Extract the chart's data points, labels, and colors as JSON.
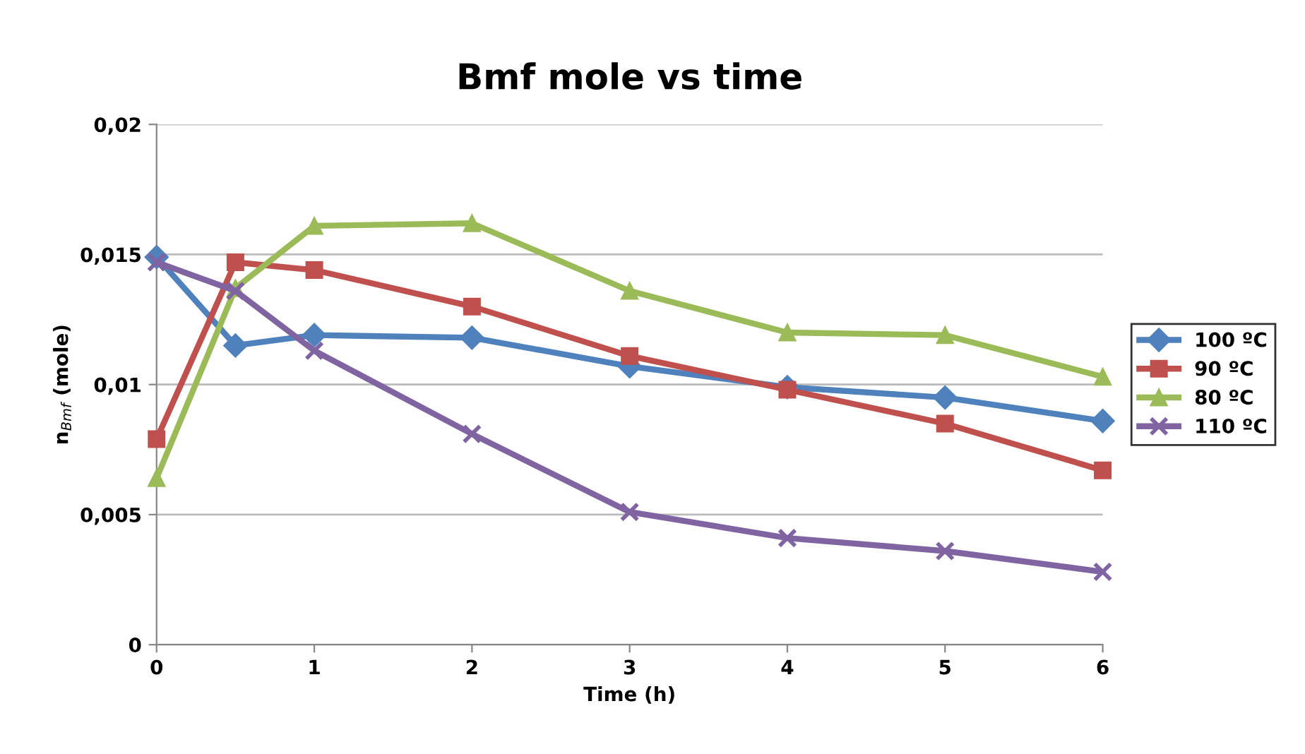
{
  "chart_data": {
    "type": "line",
    "title": "Bmf mole vs time",
    "xlabel": "Time (h)",
    "ylabel": "n$_{Bmf}$ (mole)",
    "x": [
      0,
      0.5,
      1,
      2,
      3,
      4,
      5,
      6
    ],
    "series": [
      {
        "name": "100 ºC",
        "color": "#4f81bd",
        "marker": "diamond",
        "values": [
          0.0149,
          0.0115,
          0.0119,
          0.0118,
          0.0107,
          0.0099,
          0.0095,
          0.0086
        ]
      },
      {
        "name": "90 ºC",
        "color": "#c0504d",
        "marker": "square",
        "values": [
          0.0079,
          0.0147,
          0.0144,
          0.013,
          0.0111,
          0.0098,
          0.0085,
          0.0067
        ]
      },
      {
        "name": "80 ºC",
        "color": "#9bbb59",
        "marker": "triangle",
        "values": [
          0.0064,
          0.0137,
          0.0161,
          0.0162,
          0.0136,
          0.012,
          0.0119,
          0.0103
        ]
      },
      {
        "name": "110 ºC",
        "color": "#8064a2",
        "marker": "cross",
        "values": [
          0.0147,
          0.0136,
          0.0113,
          0.0081,
          0.0051,
          0.0041,
          0.0036,
          0.0028
        ]
      }
    ],
    "xlim": [
      0,
      6
    ],
    "xticks": [
      0,
      1,
      2,
      3,
      4,
      5,
      6
    ],
    "ylim": [
      0,
      0.02
    ],
    "yticks": [
      {
        "value": 0,
        "label": "0"
      },
      {
        "value": 0.005,
        "label": "0,005"
      },
      {
        "value": 0.01,
        "label": "0,01"
      },
      {
        "value": 0.015,
        "label": "0,015"
      },
      {
        "value": 0.02,
        "label": "0,02"
      }
    ],
    "grid": "y",
    "legend": "right",
    "line_style": "solid"
  }
}
